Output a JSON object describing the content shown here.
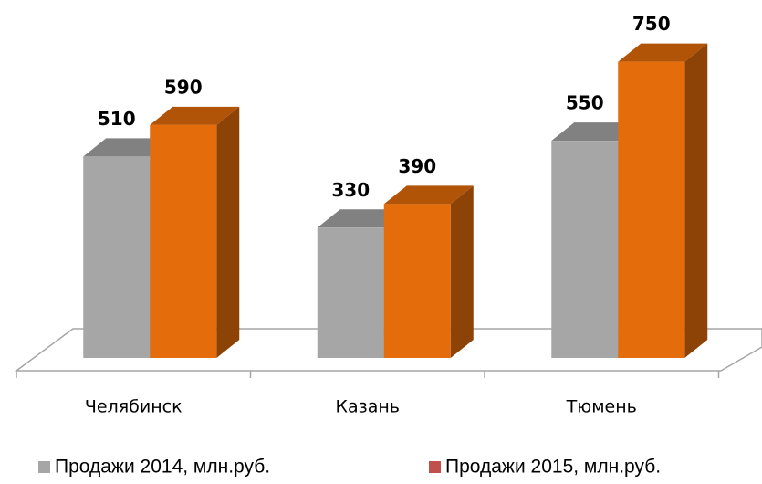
{
  "chart_data": {
    "type": "bar3d",
    "categories": [
      "Челябинск",
      "Казань",
      "Тюмень"
    ],
    "series": [
      {
        "name": "Продажи 2014, млн.руб.",
        "color": "#a6a6a6",
        "legend_color": "#a6a6a6",
        "values": [
          510,
          330,
          550
        ]
      },
      {
        "name": "Продажи 2015, млн.руб.",
        "color": "#e46c0a",
        "legend_color": "#c0504d",
        "values": [
          590,
          390,
          750
        ]
      }
    ],
    "ylim": [
      0,
      800
    ]
  }
}
